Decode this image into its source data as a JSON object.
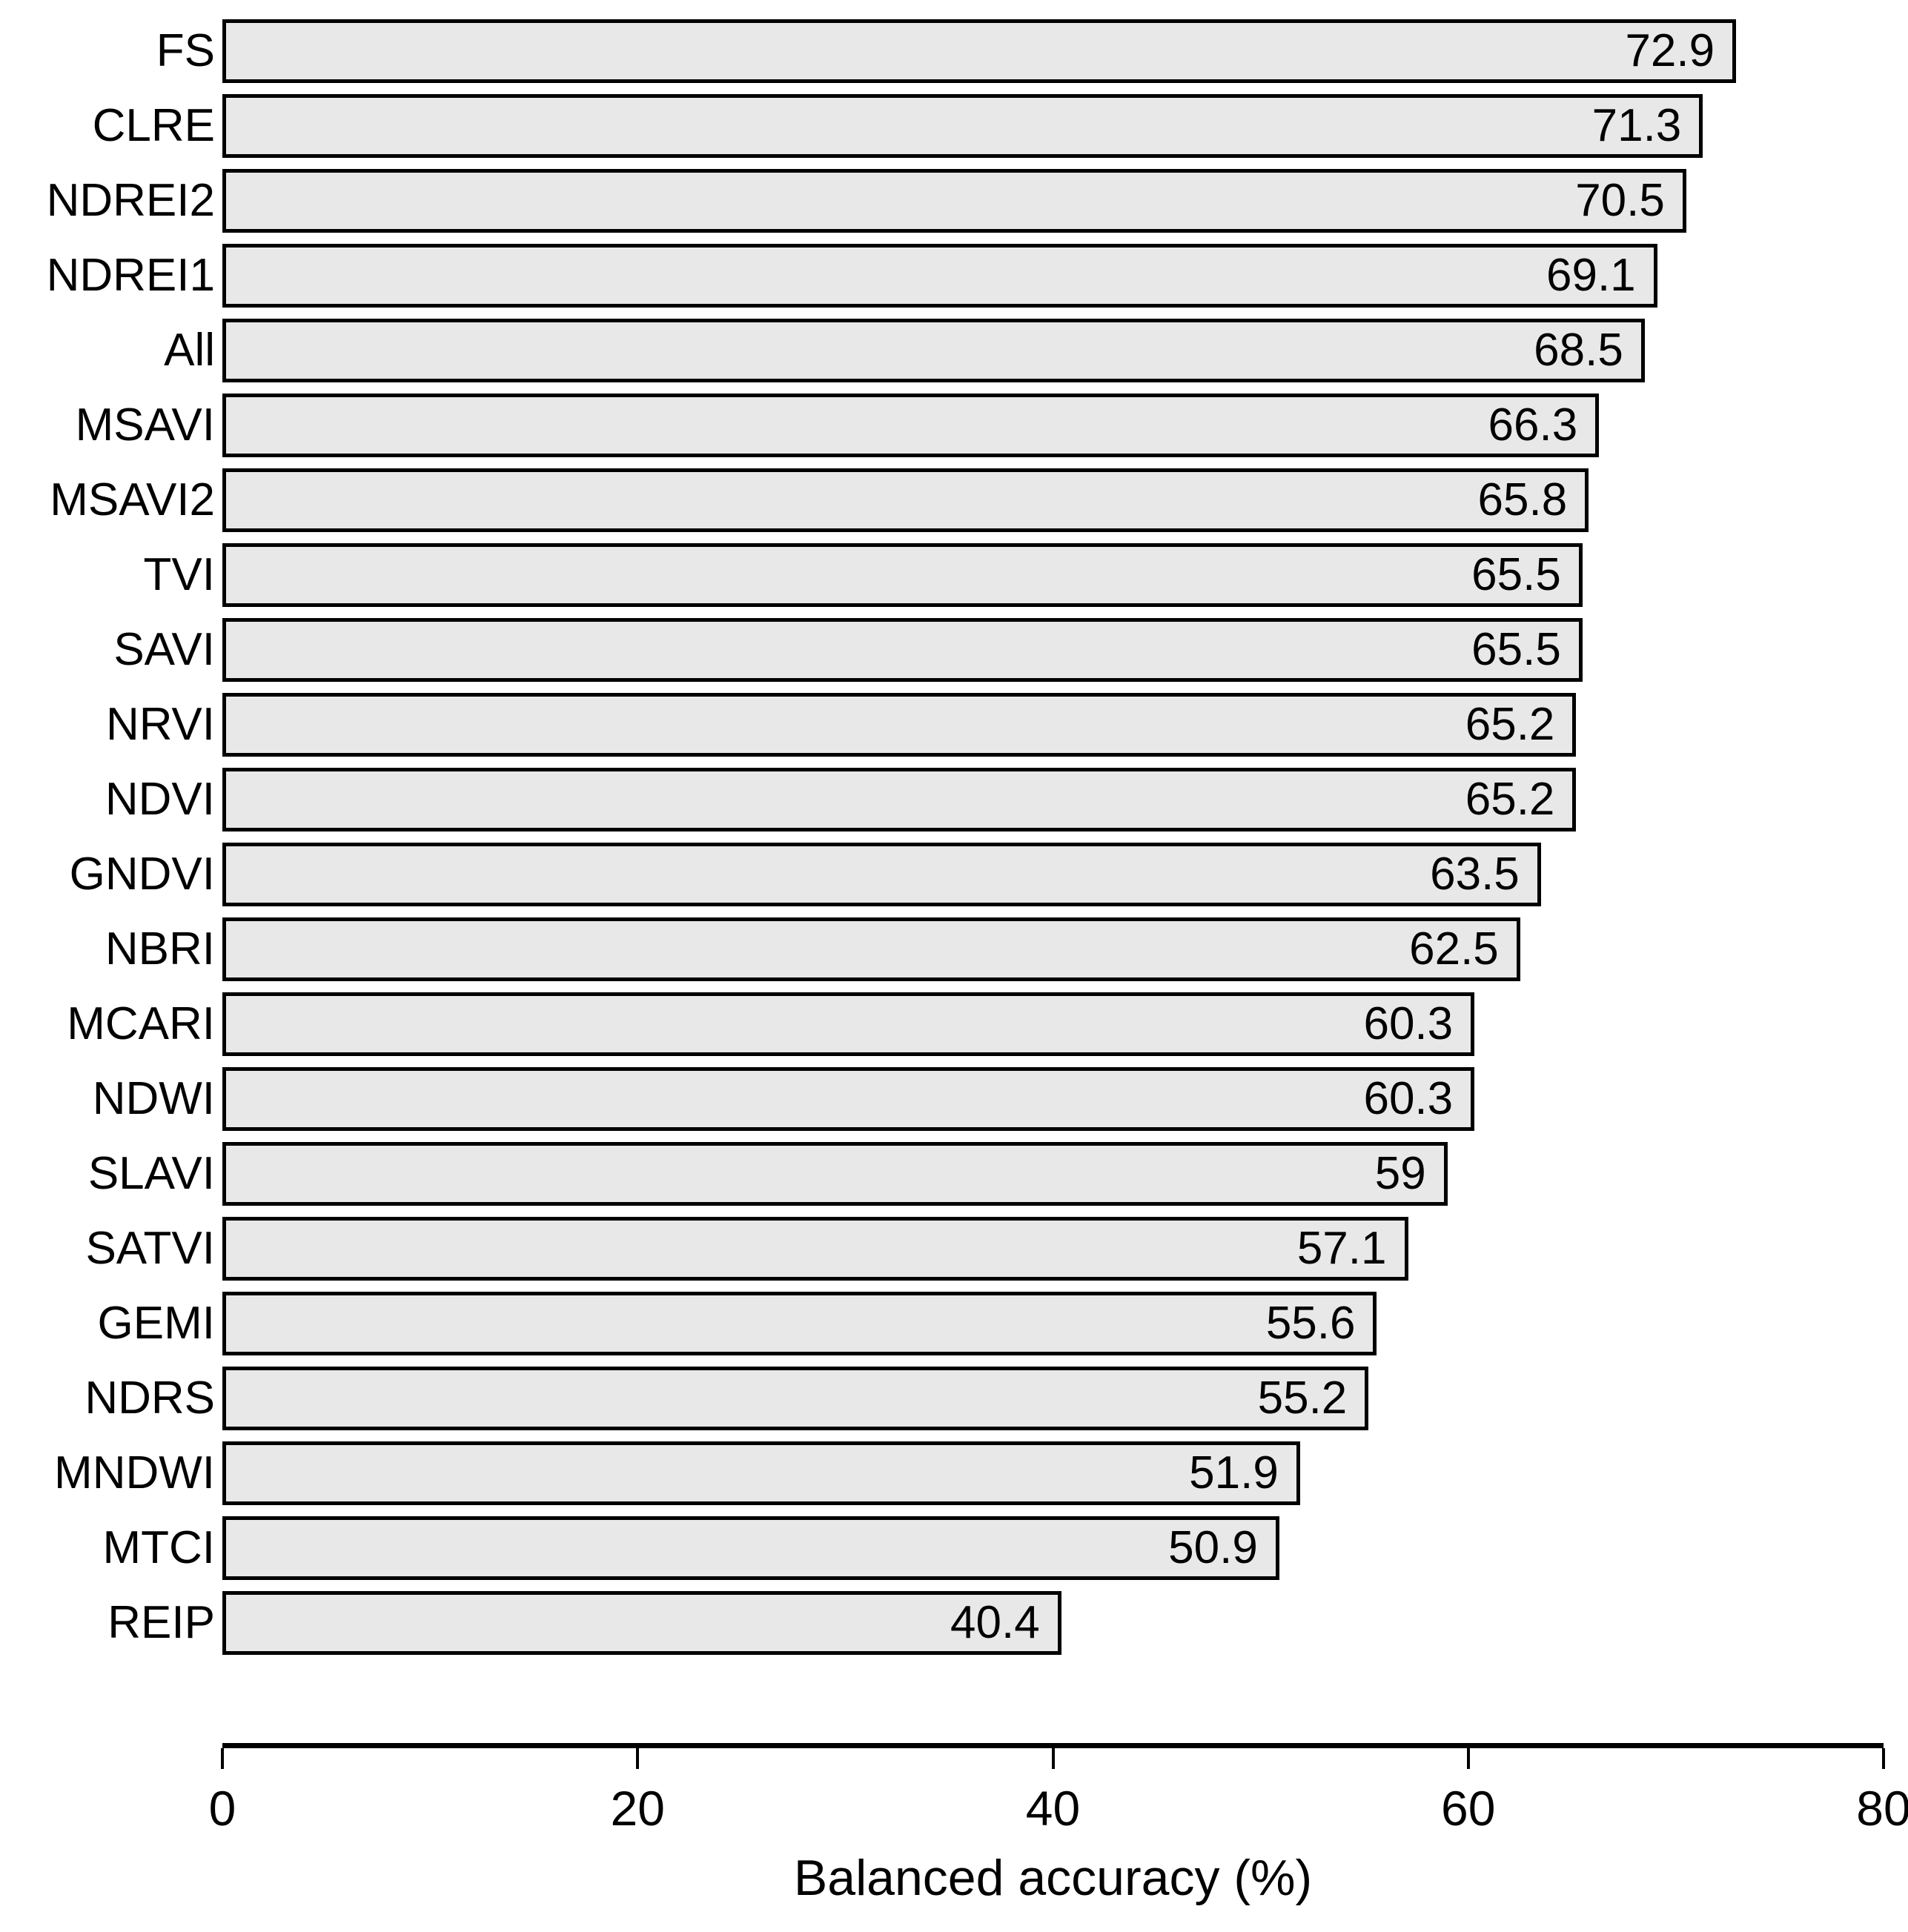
{
  "chart_data": {
    "type": "bar",
    "orientation": "horizontal",
    "title": "",
    "xlabel": "Balanced accuracy (%)",
    "ylabel": "",
    "xlim": [
      0,
      80
    ],
    "xticks": [
      0,
      20,
      40,
      60,
      80
    ],
    "grid": false,
    "legend": "none",
    "bar_fill": "#e8e8e8",
    "bar_border": "#000000",
    "categories": [
      "FS",
      "CLRE",
      "NDREI2",
      "NDREI1",
      "All",
      "MSAVI",
      "MSAVI2",
      "TVI",
      "SAVI",
      "NRVI",
      "NDVI",
      "GNDVI",
      "NBRI",
      "MCARI",
      "NDWI",
      "SLAVI",
      "SATVI",
      "GEMI",
      "NDRS",
      "MNDWI",
      "MTCI",
      "REIP"
    ],
    "values": [
      72.9,
      71.3,
      70.5,
      69.1,
      68.5,
      66.3,
      65.8,
      65.5,
      65.5,
      65.2,
      65.2,
      63.5,
      62.5,
      60.3,
      60.3,
      59,
      57.1,
      55.6,
      55.2,
      51.9,
      50.9,
      40.4
    ],
    "value_labels": [
      "72.9",
      "71.3",
      "70.5",
      "69.1",
      "68.5",
      "66.3",
      "65.8",
      "65.5",
      "65.5",
      "65.2",
      "65.2",
      "63.5",
      "62.5",
      "60.3",
      "60.3",
      "59",
      "57.1",
      "55.6",
      "55.2",
      "51.9",
      "50.9",
      "40.4"
    ]
  }
}
